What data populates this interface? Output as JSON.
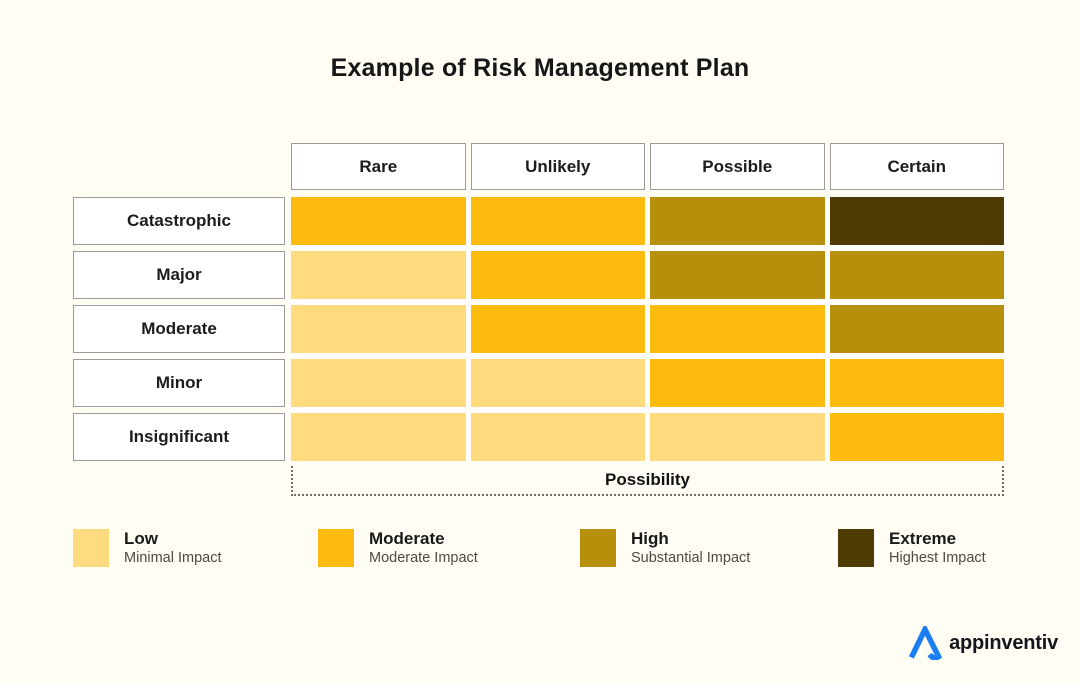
{
  "title": "Example of Risk Management Plan",
  "colors": {
    "background": "#FFFDF4",
    "low": "#FDDB7E",
    "moderate": "#FCBB0D",
    "high": "#B88F0A",
    "extreme": "#4D3B03",
    "logo_blue": "#1B7FF2"
  },
  "matrix": {
    "column_headers": [
      "Rare",
      "Unlikely",
      "Possible",
      "Certain"
    ],
    "row_headers": [
      "Catastrophic",
      "Major",
      "Moderate",
      "Minor",
      "Insignificant"
    ],
    "axis_label": "Possibility",
    "cells": [
      [
        "moderate",
        "moderate",
        "high",
        "extreme"
      ],
      [
        "low",
        "moderate",
        "high",
        "high"
      ],
      [
        "low",
        "moderate",
        "moderate",
        "high"
      ],
      [
        "low",
        "low",
        "moderate",
        "moderate"
      ],
      [
        "low",
        "low",
        "low",
        "moderate"
      ]
    ]
  },
  "legend": [
    {
      "label": "Low",
      "sublabel": "Minimal Impact",
      "color_key": "low"
    },
    {
      "label": "Moderate",
      "sublabel": "Moderate Impact",
      "color_key": "moderate"
    },
    {
      "label": "High",
      "sublabel": "Substantial Impact",
      "color_key": "high"
    },
    {
      "label": "Extreme",
      "sublabel": "Highest Impact",
      "color_key": "extreme"
    }
  ],
  "logo": {
    "text": "appinventiv"
  },
  "chart_data": {
    "type": "heatmap",
    "title": "Example of Risk Management Plan",
    "x_categories": [
      "Rare",
      "Unlikely",
      "Possible",
      "Certain"
    ],
    "y_categories": [
      "Catastrophic",
      "Major",
      "Moderate",
      "Minor",
      "Insignificant"
    ],
    "xlabel": "Possibility",
    "ylabel": "",
    "values": [
      [
        "Moderate",
        "Moderate",
        "High",
        "Extreme"
      ],
      [
        "Low",
        "Moderate",
        "High",
        "High"
      ],
      [
        "Low",
        "Moderate",
        "Moderate",
        "High"
      ],
      [
        "Low",
        "Low",
        "Moderate",
        "Moderate"
      ],
      [
        "Low",
        "Low",
        "Low",
        "Moderate"
      ]
    ],
    "levels": [
      {
        "name": "Low",
        "description": "Minimal Impact",
        "color": "#FDDB7E"
      },
      {
        "name": "Moderate",
        "description": "Moderate Impact",
        "color": "#FCBB0D"
      },
      {
        "name": "High",
        "description": "Substantial Impact",
        "color": "#B88F0A"
      },
      {
        "name": "Extreme",
        "description": "Highest Impact",
        "color": "#4D3B03"
      }
    ],
    "legend_position": "bottom",
    "grid": false
  }
}
